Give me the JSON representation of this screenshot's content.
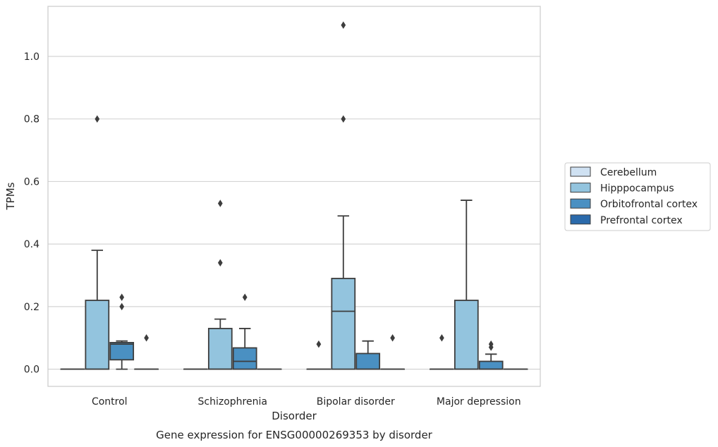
{
  "chart_data": {
    "type": "box",
    "title": "",
    "caption": "Gene expression for ENSG00000269353 by disorder",
    "xlabel": "Disorder",
    "ylabel": "TPMs",
    "ylim": [
      -0.055,
      1.16
    ],
    "yticks": [
      0.0,
      0.2,
      0.4,
      0.6,
      0.8,
      1.0
    ],
    "ytick_labels": [
      "0.0",
      "0.2",
      "0.4",
      "0.6",
      "0.8",
      "1.0"
    ],
    "categories": [
      "Control",
      "Schizophrenia",
      "Bipolar disorder",
      "Major depression"
    ],
    "grid": "horizontal",
    "legend_position": "right",
    "series": [
      {
        "name": "Cerebellum",
        "color": "#cfe1f2",
        "boxes": [
          {
            "q1": 0,
            "median": 0,
            "q3": 0,
            "whisker_low": 0,
            "whisker_high": 0,
            "outliers": []
          },
          {
            "q1": 0,
            "median": 0,
            "q3": 0,
            "whisker_low": 0,
            "whisker_high": 0,
            "outliers": []
          },
          {
            "q1": 0,
            "median": 0,
            "q3": 0,
            "whisker_low": 0,
            "whisker_high": 0,
            "outliers": [
              0.08
            ]
          },
          {
            "q1": 0,
            "median": 0,
            "q3": 0,
            "whisker_low": 0,
            "whisker_high": 0,
            "outliers": [
              0.1
            ]
          }
        ]
      },
      {
        "name": "Hipppocampus",
        "color": "#93c4de",
        "boxes": [
          {
            "q1": 0,
            "median": 0,
            "q3": 0.22,
            "whisker_low": 0,
            "whisker_high": 0.38,
            "outliers": [
              0.8
            ]
          },
          {
            "q1": 0,
            "median": 0,
            "q3": 0.13,
            "whisker_low": 0,
            "whisker_high": 0.16,
            "outliers": [
              0.53,
              0.34
            ]
          },
          {
            "q1": 0,
            "median": 0.185,
            "q3": 0.29,
            "whisker_low": 0,
            "whisker_high": 0.49,
            "outliers": [
              0.8,
              1.1
            ]
          },
          {
            "q1": 0,
            "median": 0,
            "q3": 0.22,
            "whisker_low": 0,
            "whisker_high": 0.54,
            "outliers": []
          }
        ]
      },
      {
        "name": "Orbitofrontal cortex",
        "color": "#4a90c2",
        "boxes": [
          {
            "q1": 0.03,
            "median": 0.08,
            "q3": 0.085,
            "whisker_low": 0,
            "whisker_high": 0.09,
            "outliers": [
              0.2,
              0.23
            ]
          },
          {
            "q1": 0,
            "median": 0.025,
            "q3": 0.068,
            "whisker_low": 0,
            "whisker_high": 0.13,
            "outliers": [
              0.23
            ]
          },
          {
            "q1": 0,
            "median": 0,
            "q3": 0.05,
            "whisker_low": 0,
            "whisker_high": 0.09,
            "outliers": []
          },
          {
            "q1": 0,
            "median": 0,
            "q3": 0.025,
            "whisker_low": 0,
            "whisker_high": 0.048,
            "outliers": [
              0.07,
              0.08
            ]
          }
        ]
      },
      {
        "name": "Prefrontal cortex",
        "color": "#2b6aab",
        "boxes": [
          {
            "q1": 0,
            "median": 0,
            "q3": 0,
            "whisker_low": 0,
            "whisker_high": 0,
            "outliers": [
              0.1
            ]
          },
          {
            "q1": 0,
            "median": 0,
            "q3": 0,
            "whisker_low": 0,
            "whisker_high": 0,
            "outliers": []
          },
          {
            "q1": 0,
            "median": 0,
            "q3": 0,
            "whisker_low": 0,
            "whisker_high": 0,
            "outliers": [
              0.1
            ]
          },
          {
            "q1": 0,
            "median": 0,
            "q3": 0,
            "whisker_low": 0,
            "whisker_high": 0,
            "outliers": []
          }
        ]
      }
    ]
  }
}
